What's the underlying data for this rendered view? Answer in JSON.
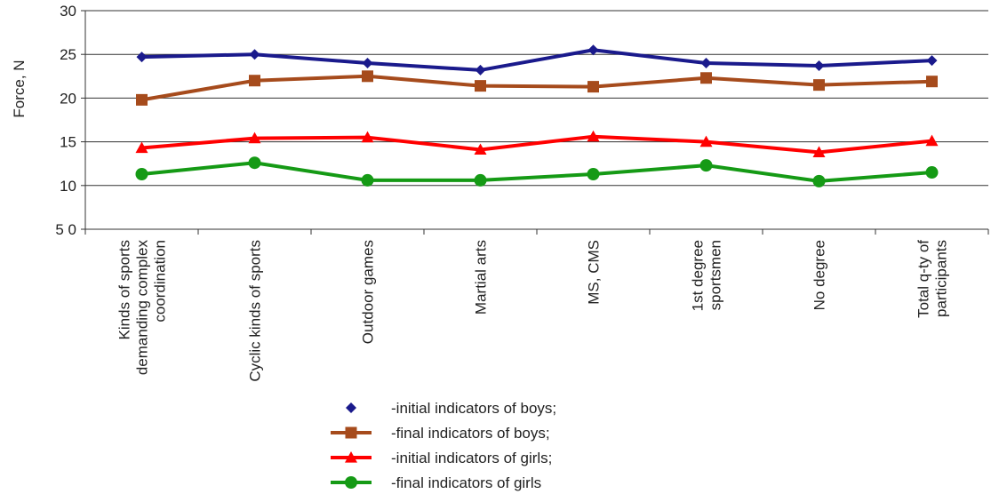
{
  "chart_data": {
    "type": "line",
    "ylabel": "Force, N",
    "ylim": [
      5,
      30
    ],
    "y_ticks": [
      {
        "value": 30,
        "label": "30"
      },
      {
        "value": 25,
        "label": "25"
      },
      {
        "value": 20,
        "label": "20"
      },
      {
        "value": 15,
        "label": "15"
      },
      {
        "value": 10,
        "label": "10"
      },
      {
        "value": 5,
        "label": "5 0"
      }
    ],
    "grid": true,
    "categories": [
      "Kinds of sports demanding complex coordination",
      "Cyclic kinds of sports",
      "Outdoor games",
      "Martial arts",
      "MS, CMS",
      "1st degree sportsmen",
      "No degree",
      "Total q-ty of participants"
    ],
    "category_lines": [
      [
        "Kinds of sports",
        "demanding complex",
        "coordination"
      ],
      [
        "Cyclic kinds of sports"
      ],
      [
        "Outdoor games"
      ],
      [
        "Martial arts"
      ],
      [
        "MS, CMS"
      ],
      [
        "1st degree",
        "sportsmen"
      ],
      [
        "No degree"
      ],
      [
        "Total q-ty of",
        "participants"
      ]
    ],
    "series": [
      {
        "name": "-initial indicators of boys;",
        "color": "#1a1a8c",
        "marker": "diamond",
        "values": [
          24.7,
          25.0,
          24.0,
          23.2,
          25.5,
          24.0,
          23.7,
          24.3
        ]
      },
      {
        "name": "-final indicators of boys;",
        "color": "#a64b1c",
        "marker": "square",
        "values": [
          19.8,
          22.0,
          22.5,
          21.4,
          21.3,
          22.3,
          21.5,
          21.9
        ]
      },
      {
        "name": "-initial indicators of girls;",
        "color": "#ff0000",
        "marker": "triangle",
        "values": [
          14.3,
          15.4,
          15.5,
          14.1,
          15.6,
          15.0,
          13.8,
          15.1
        ]
      },
      {
        "name": "-final indicators of girls",
        "color": "#159a15",
        "marker": "circle",
        "values": [
          11.3,
          12.6,
          10.6,
          10.6,
          11.3,
          12.3,
          10.5,
          11.5
        ]
      }
    ]
  }
}
